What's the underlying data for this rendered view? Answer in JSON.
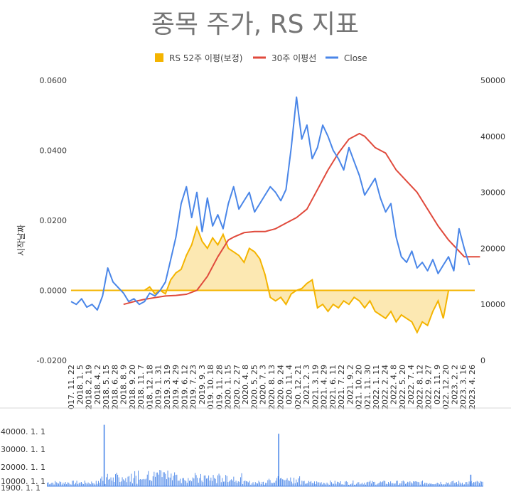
{
  "chart_data": [
    {
      "type": "combo-area-line",
      "title": "종목 주가, RS 지표",
      "ylabel": "시작날짜",
      "legend_position": "top",
      "grid": false,
      "y_left": {
        "range": [
          -0.02,
          0.06
        ],
        "ticks": [
          -0.02,
          0.0,
          0.02,
          0.04,
          0.06
        ],
        "tick_labels": [
          "-0.0200",
          "0.0000",
          "0.0200",
          "0.0400",
          "0.0600"
        ]
      },
      "y_right": {
        "range": [
          0,
          50000
        ],
        "ticks": [
          0,
          10000,
          20000,
          30000,
          40000,
          50000
        ],
        "tick_labels": [
          "0",
          "10000",
          "20000",
          "30000",
          "40000",
          "50000"
        ]
      },
      "x_tick_labels": [
        "017. 11. 22",
        "2018. 1. 5",
        "2018. 2. 19",
        "2018. 4. 2",
        "2018. 5. 15",
        "2018. 6. 28",
        "2018. 8. 9",
        "2018. 9. 20",
        "2018. 11. 7",
        "018. 12. 18",
        "2019. 1. 31",
        "2019. 3. 19",
        "2019. 4. 29",
        "2019. 6. 12",
        "2019. 7. 23",
        "2019. 9. 3",
        "019. 10. 18",
        "019. 11. 28",
        "2020. 1. 15",
        "2020. 2. 27",
        "2020. 4. 8",
        "2020. 5. 25",
        "2020. 7. 3",
        "2020. 8. 13",
        "2020. 9. 24",
        "020. 11. 4",
        "020. 12. 21",
        "2021. 2. 3",
        "2021. 3. 19",
        "2021. 4. 29",
        "2021. 6. 11",
        "2021. 7. 22",
        "2021. 9. 2",
        "021. 10. 20",
        "021. 11. 30",
        "2022. 1. 11",
        "2022. 2. 24",
        "2022. 4. 8",
        "2022. 5. 20",
        "2022. 7. 4",
        "2022. 8. 12",
        "2022. 9. 27",
        "022. 11. 9",
        "022. 12. 20",
        "2023. 2. 2",
        "2023. 3. 16",
        "2023. 4. 26"
      ],
      "series": [
        {
          "name": "RS 52주 이평(보정)",
          "axis": "left",
          "style": "area",
          "color": "#f4b400",
          "points": [
            [
              0,
              0.0
            ],
            [
              7,
              0.0
            ],
            [
              12,
              0.0
            ],
            [
              14,
              0.0
            ],
            [
              15,
              0.001
            ],
            [
              16,
              -0.001
            ],
            [
              17,
              0.0
            ],
            [
              18,
              -0.001
            ],
            [
              19,
              0.003
            ],
            [
              20,
              0.005
            ],
            [
              21,
              0.006
            ],
            [
              22,
              0.01
            ],
            [
              23,
              0.013
            ],
            [
              24,
              0.018
            ],
            [
              25,
              0.014
            ],
            [
              26,
              0.012
            ],
            [
              27,
              0.015
            ],
            [
              28,
              0.013
            ],
            [
              29,
              0.016
            ],
            [
              30,
              0.012
            ],
            [
              31,
              0.011
            ],
            [
              32,
              0.01
            ],
            [
              33,
              0.008
            ],
            [
              34,
              0.012
            ],
            [
              35,
              0.011
            ],
            [
              36,
              0.009
            ],
            [
              37,
              0.0045
            ],
            [
              38,
              -0.002
            ],
            [
              39,
              -0.003
            ],
            [
              40,
              -0.002
            ],
            [
              41,
              -0.004
            ],
            [
              42,
              -0.001
            ],
            [
              43,
              0.0
            ],
            [
              44,
              0.0005
            ],
            [
              45,
              0.002
            ],
            [
              46,
              0.003
            ],
            [
              47,
              -0.005
            ],
            [
              48,
              -0.004
            ],
            [
              49,
              -0.006
            ],
            [
              50,
              -0.004
            ],
            [
              51,
              -0.005
            ],
            [
              52,
              -0.003
            ],
            [
              53,
              -0.004
            ],
            [
              54,
              -0.002
            ],
            [
              55,
              -0.003
            ],
            [
              56,
              -0.005
            ],
            [
              57,
              -0.003
            ],
            [
              58,
              -0.006
            ],
            [
              59,
              -0.007
            ],
            [
              60,
              -0.008
            ],
            [
              61,
              -0.006
            ],
            [
              62,
              -0.009
            ],
            [
              63,
              -0.007
            ],
            [
              64,
              -0.008
            ],
            [
              65,
              -0.009
            ],
            [
              66,
              -0.012
            ],
            [
              67,
              -0.009
            ],
            [
              68,
              -0.01
            ],
            [
              69,
              -0.006
            ],
            [
              70,
              -0.003
            ],
            [
              71,
              -0.008
            ],
            [
              72,
              0.0
            ]
          ]
        },
        {
          "name": "30주 이평선",
          "axis": "right",
          "style": "line",
          "color": "#e04a3c",
          "points": [
            [
              10,
              10000
            ],
            [
              12,
              10500
            ],
            [
              14,
              10900
            ],
            [
              16,
              11200
            ],
            [
              18,
              11500
            ],
            [
              20,
              11600
            ],
            [
              22,
              11800
            ],
            [
              24,
              12500
            ],
            [
              26,
              15000
            ],
            [
              28,
              18500
            ],
            [
              30,
              21500
            ],
            [
              31,
              22000
            ],
            [
              33,
              22800
            ],
            [
              35,
              23000
            ],
            [
              37,
              23000
            ],
            [
              39,
              23500
            ],
            [
              41,
              24500
            ],
            [
              43,
              25500
            ],
            [
              45,
              27000
            ],
            [
              47,
              30500
            ],
            [
              49,
              34000
            ],
            [
              51,
              37000
            ],
            [
              53,
              39500
            ],
            [
              55,
              40500
            ],
            [
              56,
              40000
            ],
            [
              58,
              38000
            ],
            [
              60,
              37000
            ],
            [
              62,
              34000
            ],
            [
              64,
              32000
            ],
            [
              66,
              30000
            ],
            [
              68,
              27000
            ],
            [
              70,
              24000
            ],
            [
              72,
              21500
            ],
            [
              74,
              19500
            ],
            [
              75,
              18500
            ],
            [
              78,
              18500
            ]
          ]
        },
        {
          "name": "Close",
          "axis": "right",
          "style": "line",
          "color": "#4a86e8",
          "points": [
            [
              0,
              10500
            ],
            [
              1,
              10000
            ],
            [
              2,
              11000
            ],
            [
              3,
              9500
            ],
            [
              4,
              10000
            ],
            [
              5,
              9000
            ],
            [
              6,
              11500
            ],
            [
              7,
              16500
            ],
            [
              8,
              14000
            ],
            [
              9,
              13000
            ],
            [
              10,
              12000
            ],
            [
              11,
              10500
            ],
            [
              12,
              11000
            ],
            [
              13,
              10000
            ],
            [
              14,
              10500
            ],
            [
              15,
              12000
            ],
            [
              16,
              11500
            ],
            [
              17,
              12500
            ],
            [
              18,
              14000
            ],
            [
              19,
              18000
            ],
            [
              20,
              22000
            ],
            [
              21,
              28000
            ],
            [
              22,
              31000
            ],
            [
              23,
              25500
            ],
            [
              24,
              30000
            ],
            [
              25,
              23000
            ],
            [
              26,
              29000
            ],
            [
              27,
              24000
            ],
            [
              28,
              26000
            ],
            [
              29,
              23500
            ],
            [
              30,
              28000
            ],
            [
              31,
              31000
            ],
            [
              32,
              27000
            ],
            [
              33,
              28500
            ],
            [
              34,
              30000
            ],
            [
              35,
              26500
            ],
            [
              36,
              28000
            ],
            [
              37,
              29500
            ],
            [
              38,
              31000
            ],
            [
              39,
              30000
            ],
            [
              40,
              28500
            ],
            [
              41,
              30500
            ],
            [
              42,
              38000
            ],
            [
              43,
              47000
            ],
            [
              44,
              39500
            ],
            [
              45,
              42000
            ],
            [
              46,
              36000
            ],
            [
              47,
              38000
            ],
            [
              48,
              42000
            ],
            [
              49,
              40000
            ],
            [
              50,
              37500
            ],
            [
              51,
              36000
            ],
            [
              52,
              34000
            ],
            [
              53,
              38000
            ],
            [
              54,
              35500
            ],
            [
              55,
              33000
            ],
            [
              56,
              29500
            ],
            [
              57,
              31000
            ],
            [
              58,
              32500
            ],
            [
              59,
              29000
            ],
            [
              60,
              26500
            ],
            [
              61,
              28000
            ],
            [
              62,
              22000
            ],
            [
              63,
              18500
            ],
            [
              64,
              17500
            ],
            [
              65,
              19500
            ],
            [
              66,
              16500
            ],
            [
              67,
              17500
            ],
            [
              68,
              16000
            ],
            [
              69,
              18000
            ],
            [
              70,
              15500
            ],
            [
              71,
              17000
            ],
            [
              72,
              18500
            ],
            [
              73,
              16000
            ],
            [
              74,
              23500
            ],
            [
              75,
              20000
            ],
            [
              76,
              17000
            ]
          ]
        }
      ]
    },
    {
      "type": "bar",
      "title": "",
      "y_tick_labels": [
        "40000. 1. 1",
        "30000. 1. 1",
        "20000. 1. 1",
        "10000. 1. 1",
        "1900. 1. 1"
      ],
      "spikes": [
        {
          "x": 0.13,
          "value": 0.96
        },
        {
          "x": 0.53,
          "value": 0.82
        },
        {
          "x": 0.97,
          "value": 0.18
        }
      ]
    }
  ]
}
